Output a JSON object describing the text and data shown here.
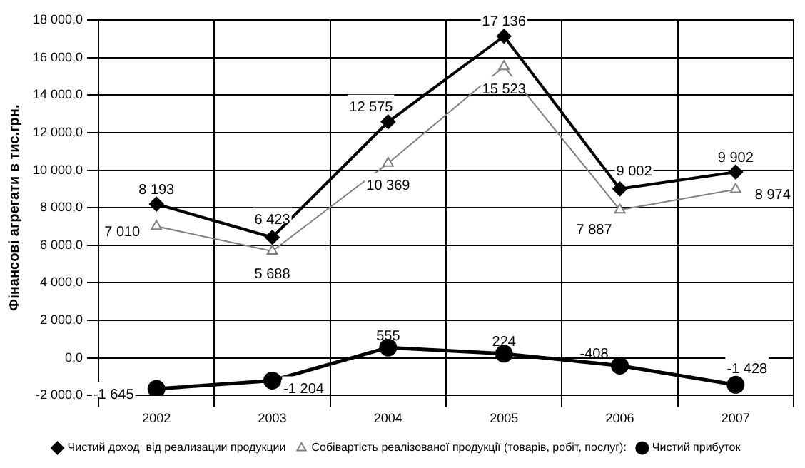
{
  "chart_data": {
    "type": "line",
    "ylabel": "Фінансові агрегати в тис.грн.",
    "categories": [
      "2002",
      "2003",
      "2004",
      "2005",
      "2006",
      "2007"
    ],
    "series": [
      {
        "name": "Чистий доход  від реализации продукции",
        "color": "#000000",
        "marker": "diamond",
        "values": [
          8193,
          6423,
          12575,
          17136,
          9002,
          9902
        ],
        "value_labels": [
          "8 193",
          "6 423",
          "12 575",
          "17 136",
          "9 002",
          "9 902"
        ]
      },
      {
        "name": "Собівартість реалізованої продукції (товарів, робіт, послуг):",
        "color": "#808080",
        "marker": "triangle",
        "values": [
          7010,
          5688,
          10369,
          15523,
          7887,
          8974
        ],
        "value_labels": [
          "7 010",
          "5 688",
          "10 369",
          "15 523",
          "7 887",
          "8 974"
        ]
      },
      {
        "name": "Чистий прибуток",
        "color": "#000000",
        "marker": "circle",
        "values": [
          -1645,
          -1204,
          555,
          224,
          -408,
          -1428
        ],
        "value_labels": [
          "-1 645",
          "-1 204",
          "555",
          "224",
          "-408",
          "-1 428"
        ]
      }
    ],
    "ylim": [
      -2000,
      18000
    ],
    "yticks": [
      {
        "value": -2000,
        "label": "-2 000,0"
      },
      {
        "value": 0,
        "label": "0,0"
      },
      {
        "value": 2000,
        "label": "2 000,0"
      },
      {
        "value": 4000,
        "label": "4 000,0"
      },
      {
        "value": 6000,
        "label": "6 000,0"
      },
      {
        "value": 8000,
        "label": "8 000,0"
      },
      {
        "value": 10000,
        "label": "10 000,0"
      },
      {
        "value": 12000,
        "label": "12 000,0"
      },
      {
        "value": 14000,
        "label": "14 000,0"
      },
      {
        "value": 16000,
        "label": "16 000,0"
      },
      {
        "value": 18000,
        "label": "18 000,0"
      }
    ],
    "grid": true,
    "legend": "bottom",
    "line_style": "solid"
  }
}
